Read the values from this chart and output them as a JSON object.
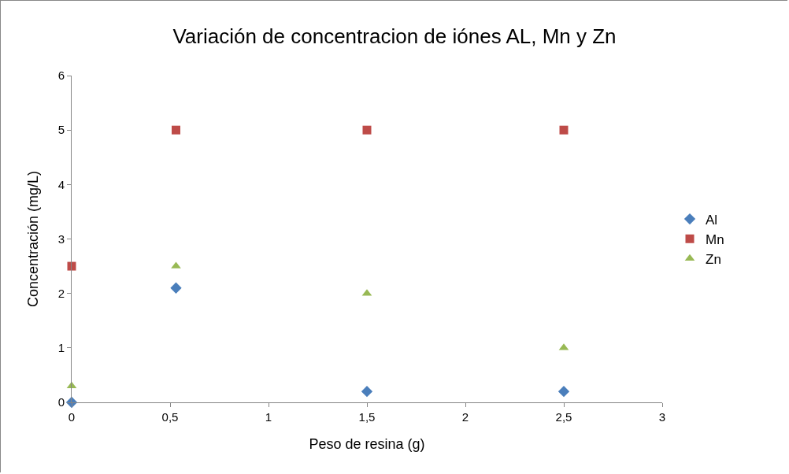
{
  "chart_data": {
    "type": "scatter",
    "title": "Variación de concentracion de iónes AL, Mn y Zn",
    "xlabel": "Peso de resina (g)",
    "ylabel": "Concentración (mg/L)",
    "x": [
      0,
      0.53,
      1.5,
      2.5
    ],
    "series": [
      {
        "name": "Al",
        "color": "#4a7ebb",
        "marker": "diamond",
        "values": [
          0,
          2.1,
          0.2,
          0.2
        ]
      },
      {
        "name": "Mn",
        "color": "#be4b48",
        "marker": "square",
        "values": [
          2.5,
          5,
          5,
          5
        ]
      },
      {
        "name": "Zn",
        "color": "#98b954",
        "marker": "triangle",
        "values": [
          0.3,
          2.5,
          2,
          1
        ]
      }
    ],
    "xlim": [
      0,
      3
    ],
    "xticks": [
      0,
      {
        "value": 0.5,
        "label": "0,5"
      },
      1,
      {
        "value": 1.5,
        "label": "1,5"
      },
      2,
      {
        "value": 2.5,
        "label": "2,5"
      },
      3
    ],
    "ylim": [
      0,
      6
    ],
    "yticks": [
      0,
      1,
      2,
      3,
      4,
      5,
      6
    ],
    "grid": false,
    "legend": "right"
  }
}
